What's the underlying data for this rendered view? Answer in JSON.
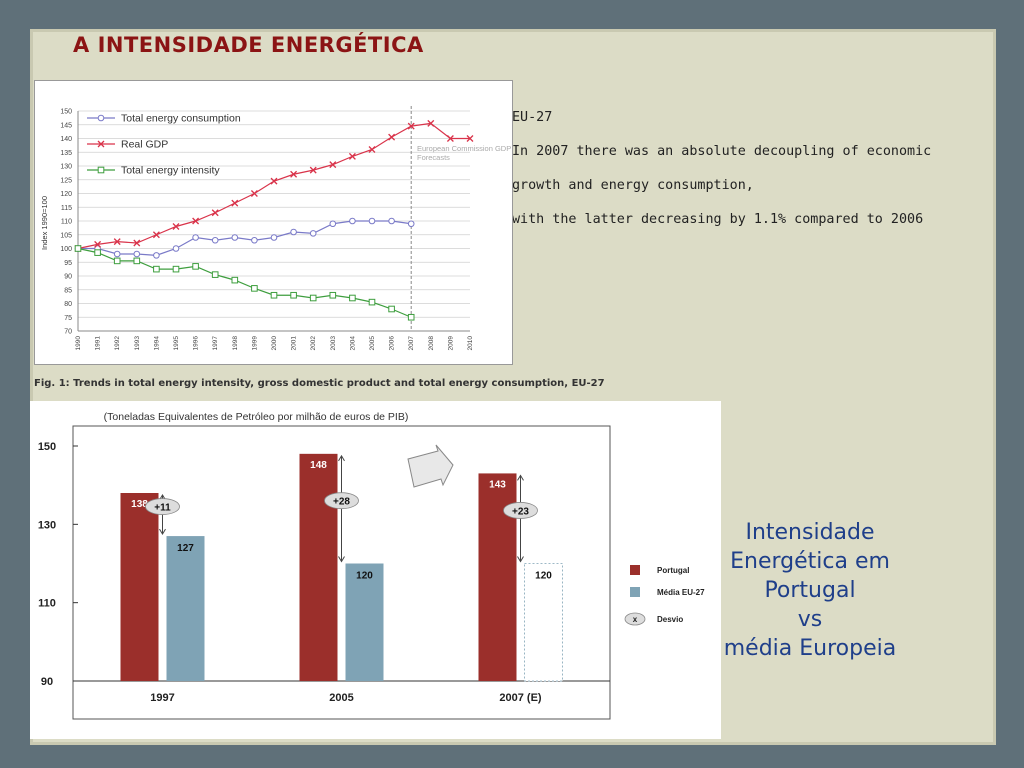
{
  "slide": {
    "title": "A INTENSIDADE ENERGÉTICA",
    "note_lines": [
      "EU-27",
      "In 2007 there was an absolute decoupling of economic",
      "growth and energy consumption,",
      "with the latter decreasing by 1.1% compared to 2006"
    ],
    "side_lines": [
      "Intensidade",
      "Energética em",
      "Portugal",
      "vs",
      "média Europeia"
    ],
    "colors": {
      "background": "#5f7079",
      "slide": "#dcdcc6",
      "title": "#8b1414",
      "side_text": "#1f3f8a"
    }
  },
  "chart_data": [
    {
      "type": "line",
      "caption": "Fig. 1: Trends in total energy intensity, gross domestic product and total energy consumption, EU-27",
      "ylabel": "Index 1990=100",
      "ylim": [
        70,
        150
      ],
      "yticks": [
        70,
        75,
        80,
        85,
        90,
        95,
        100,
        105,
        110,
        115,
        120,
        125,
        130,
        135,
        140,
        145,
        150
      ],
      "x": [
        "1990",
        "1991",
        "1992",
        "1993",
        "1994",
        "1995",
        "1996",
        "1997",
        "1998",
        "1999",
        "2000",
        "2001",
        "2002",
        "2003",
        "2004",
        "2005",
        "2006",
        "2007",
        "2008",
        "2009",
        "2010"
      ],
      "annotation": [
        "European Commission GDP",
        "Forecasts"
      ],
      "forecast_divider": "2007",
      "legend_position": "top-left",
      "series": [
        {
          "name": "Total energy consumption",
          "marker": "circle",
          "color": "#7a7ac8",
          "values": [
            100,
            100,
            98,
            98,
            97.5,
            100,
            104,
            103,
            104,
            103,
            104,
            106,
            105.5,
            109,
            110,
            110,
            110,
            109,
            null,
            null,
            null
          ]
        },
        {
          "name": "Real GDP",
          "marker": "cross",
          "color": "#d9334a",
          "values": [
            100,
            101.5,
            102.5,
            102,
            105,
            108,
            110,
            113,
            116.5,
            120,
            124.5,
            127,
            128.5,
            130.5,
            133.5,
            136,
            140.5,
            144.5,
            145.5,
            140,
            140
          ]
        },
        {
          "name": "Total energy intensity",
          "marker": "square",
          "color": "#3e9e3e",
          "values": [
            100,
            98.5,
            95.5,
            95.5,
            92.5,
            92.5,
            93.5,
            90.5,
            88.5,
            85.5,
            83,
            83,
            82,
            83,
            82,
            80.5,
            78,
            75,
            null,
            null,
            null
          ]
        }
      ]
    },
    {
      "type": "bar",
      "title": "(Toneladas Equivalentes de Petróleo por milhão de euros de PIB)",
      "ylim": [
        90,
        150
      ],
      "yticks": [
        90,
        110,
        130,
        150
      ],
      "categories": [
        "1997",
        "2005",
        "2007 (E)"
      ],
      "legend_position": "right",
      "series": [
        {
          "name": "Portugal",
          "color": "#9b2f2b",
          "values": [
            138,
            148,
            143
          ]
        },
        {
          "name": "Média EU-27",
          "color": "#7fa3b5",
          "values": [
            127,
            120,
            120
          ]
        }
      ],
      "deviation_label": "Desvio",
      "deviations": [
        "+11",
        "+28",
        "+23"
      ]
    }
  ]
}
